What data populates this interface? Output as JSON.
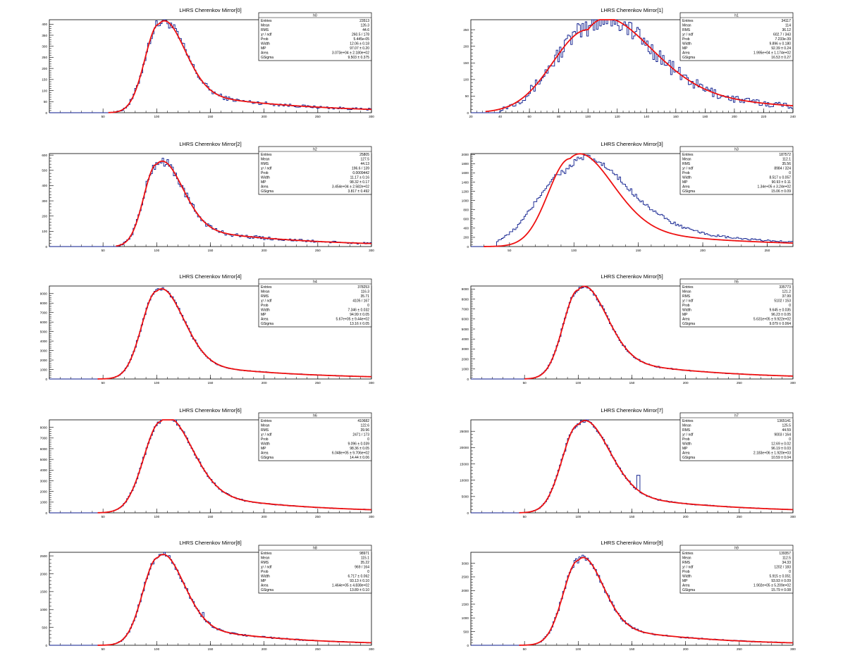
{
  "stat_labels": [
    "Entries",
    "Mean",
    "RMS",
    "χ² / ndf",
    "Prob",
    "Width",
    "MP",
    "Area",
    "GSigma"
  ],
  "colors": {
    "histogram": "#0a1a8c",
    "fit": "#ee1111",
    "frame": "#000000"
  },
  "chart_data": [
    {
      "type": "histogram",
      "title": "LHRS Cherenkov Mirror[0]",
      "stats_name": "h0",
      "stats": [
        "23513",
        "126.3",
        "44.6",
        "260.5 / 178",
        "5.445e-05",
        "12.06 ± 0.18",
        "97.07 ± 0.20",
        "3.073e+04 ± 2.180e+02",
        "9.503 ± 0.375"
      ],
      "xlim": [
        0,
        300
      ],
      "ylim": [
        0,
        420
      ],
      "xticks": [
        50,
        100,
        150,
        200,
        250,
        300
      ],
      "yticks": [
        0,
        50,
        100,
        150,
        200,
        250,
        300,
        350,
        400
      ],
      "fit": {
        "peak_x": 102,
        "peak_y": 400,
        "sigma_left": 13,
        "sigma_right": 22,
        "tail_ratio": 0.05,
        "tail_decay": 95,
        "start_x": 55
      },
      "data_jitter": 0.06,
      "data_start_x": 58
    },
    {
      "type": "histogram",
      "title": "LHRS Cherenkov Mirror[1]",
      "stats_name": "h1",
      "stats": [
        "34117",
        "114",
        "36.12",
        "602.7 / 343",
        "7.233e-39",
        "9.896 ± 0.180",
        "92.39 ± 0.24",
        "1.995e+04 ± 1.174e+02",
        "16.53 ± 0.27"
      ],
      "xlim": [
        20,
        240
      ],
      "ylim": [
        0,
        280
      ],
      "xticks": [
        20,
        40,
        60,
        80,
        100,
        120,
        140,
        160,
        180,
        200,
        220,
        240
      ],
      "yticks": [
        0,
        50,
        100,
        150,
        200,
        250
      ],
      "fit": {
        "peak_x": 100,
        "peak_y": 250,
        "sigma_left": 24,
        "sigma_right": 38,
        "tail_ratio": 0.08,
        "tail_decay": 80,
        "start_x": 30
      },
      "data_jitter": 0.12,
      "data_start_x": 40
    },
    {
      "type": "histogram",
      "title": "LHRS Cherenkov Mirror[2]",
      "stats_name": "h2",
      "stats": [
        "25805",
        "127.5",
        "44.13",
        "196.6 / 139",
        "0.0009442",
        "11.17 ± 0.16",
        "98.32 ± 0.17",
        "3.454e+04 ± 2.582e+02",
        "3.817 ± 0.492"
      ],
      "xlim": [
        0,
        300
      ],
      "ylim": [
        0,
        610
      ],
      "xticks": [
        50,
        100,
        150,
        200,
        250,
        300
      ],
      "yticks": [
        0,
        100,
        200,
        300,
        400,
        500,
        600
      ],
      "fit": {
        "peak_x": 100,
        "peak_y": 540,
        "sigma_left": 12,
        "sigma_right": 22,
        "tail_ratio": 0.05,
        "tail_decay": 95,
        "start_x": 62
      },
      "data_jitter": 0.06,
      "data_start_x": 65
    },
    {
      "type": "histogram",
      "title": "LHRS Cherenkov Mirror[3]",
      "stats_name": "h3",
      "stats": [
        "187572",
        "112.1",
        "35.56",
        "8984 / 324",
        "0",
        "8.517 ± 0.057",
        "90.93 ± 0.11",
        "1.34e+05 ± 3.24e+02",
        "15.06 ± 0.09"
      ],
      "xlim": [
        20,
        270
      ],
      "ylim": [
        0,
        2020
      ],
      "xticks": [
        50,
        100,
        150,
        200,
        250
      ],
      "yticks": [
        0,
        200,
        400,
        600,
        800,
        1000,
        1200,
        1400,
        1600,
        1800,
        2000
      ],
      "fit": {
        "peak_x": 97,
        "peak_y": 1910,
        "sigma_left": 17,
        "sigma_right": 30,
        "tail_ratio": 0.05,
        "tail_decay": 85,
        "start_x": 30
      },
      "data_override": {
        "peak_x": 95,
        "peak_y": 1650,
        "sigma_left": 24,
        "sigma_right": 40,
        "tail_ratio": 0.09,
        "tail_decay": 80
      },
      "data_jitter": 0.04,
      "data_start_x": 40
    },
    {
      "type": "histogram",
      "title": "LHRS Cherenkov Mirror[4]",
      "stats_name": "h4",
      "stats": [
        "378253",
        "116.3",
        "35.71",
        "4105 / 167",
        "0",
        "7.346 ± 0.032",
        "94.99 ± 0.05",
        "5.67e+05 ± 9.44e+02",
        "13.16 ± 0.05"
      ],
      "xlim": [
        0,
        300
      ],
      "ylim": [
        0,
        9800
      ],
      "xticks": [
        50,
        100,
        150,
        200,
        250,
        300
      ],
      "yticks": [
        0,
        1000,
        2000,
        3000,
        4000,
        5000,
        6000,
        7000,
        8000,
        9000
      ],
      "fit": {
        "peak_x": 100,
        "peak_y": 9250,
        "sigma_left": 14,
        "sigma_right": 23,
        "tail_ratio": 0.04,
        "tail_decay": 90,
        "start_x": 45
      },
      "data_jitter": 0.02,
      "data_start_x": 50
    },
    {
      "type": "histogram",
      "title": "LHRS Cherenkov Mirror[5]",
      "stats_name": "h5",
      "stats": [
        "335773",
        "121.2",
        "37.99",
        "5102 / 153",
        "0",
        "9.645 ± 0.035",
        "96.23 ± 0.05",
        "5.631e+05 ± 9.922e+02",
        "9.079 ± 0.064"
      ],
      "xlim": [
        0,
        300
      ],
      "ylim": [
        0,
        9300
      ],
      "xticks": [
        50,
        100,
        150,
        200,
        250,
        300
      ],
      "yticks": [
        0,
        1000,
        2000,
        3000,
        4000,
        5000,
        6000,
        7000,
        8000,
        9000
      ],
      "fit": {
        "peak_x": 100,
        "peak_y": 8900,
        "sigma_left": 14,
        "sigma_right": 24,
        "tail_ratio": 0.05,
        "tail_decay": 90,
        "start_x": 50
      },
      "data_jitter": 0.02,
      "data_start_x": 55
    },
    {
      "type": "histogram",
      "title": "LHRS Cherenkov Mirror[6]",
      "stats_name": "h6",
      "stats": [
        "410682",
        "122.6",
        "39.96",
        "2471 / 173",
        "0",
        "9.096 ± 0.039",
        "98.36 ± 0.05",
        "6.048e+05 ± 9.706e+02",
        "14.44 ± 0.06"
      ],
      "xlim": [
        0,
        300
      ],
      "ylim": [
        0,
        8700
      ],
      "xticks": [
        50,
        100,
        150,
        200,
        250,
        300
      ],
      "yticks": [
        0,
        1000,
        2000,
        3000,
        4000,
        5000,
        6000,
        7000,
        8000
      ],
      "fit": {
        "peak_x": 104,
        "peak_y": 8550,
        "sigma_left": 16,
        "sigma_right": 26,
        "tail_ratio": 0.05,
        "tail_decay": 90,
        "start_x": 45
      },
      "data_jitter": 0.02,
      "data_start_x": 50
    },
    {
      "type": "histogram",
      "title": "LHRS Cherenkov Mirror[7]",
      "stats_name": "h7",
      "stats": [
        "1365141",
        "125.5",
        "44.59",
        "9003 / 164",
        "0",
        "12.69 ± 0.02",
        "96.19 ± 0.03",
        "2.183e+06 ± 1.920e+03",
        "10.59 ± 0.04"
      ],
      "xlim": [
        0,
        300
      ],
      "ylim": [
        0,
        28500
      ],
      "xticks": [
        50,
        100,
        150,
        200,
        250,
        300
      ],
      "yticks": [
        0,
        5000,
        10000,
        15000,
        20000,
        25000
      ],
      "fit": {
        "peak_x": 100,
        "peak_y": 27000,
        "sigma_left": 15,
        "sigma_right": 26,
        "tail_ratio": 0.05,
        "tail_decay": 95,
        "start_x": 45
      },
      "data_jitter": 0.02,
      "data_start_x": 50,
      "spike": {
        "x": 156,
        "y": 11500
      }
    },
    {
      "type": "histogram",
      "title": "LHRS Cherenkov Mirror[8]",
      "stats_name": "h8",
      "stats": [
        "98971",
        "115.1",
        "35.22",
        "969 / 164",
        "0",
        "6.717 ± 0.062",
        "93.13 ± 0.10",
        "1.464e+05 ± 4.838e+02",
        "13.89 ± 0.10"
      ],
      "xlim": [
        0,
        300
      ],
      "ylim": [
        0,
        2600
      ],
      "xticks": [
        50,
        100,
        150,
        200,
        250,
        300
      ],
      "yticks": [
        0,
        500,
        1000,
        1500,
        2000,
        2500
      ],
      "fit": {
        "peak_x": 101,
        "peak_y": 2450,
        "sigma_left": 14,
        "sigma_right": 22,
        "tail_ratio": 0.05,
        "tail_decay": 85,
        "start_x": 45
      },
      "data_jitter": 0.03,
      "data_start_x": 50,
      "spike": {
        "x": 143,
        "y": 920
      }
    },
    {
      "type": "histogram",
      "title": "LHRS Cherenkov Mirror[9]",
      "stats_name": "h9",
      "stats": [
        "139357",
        "112.5",
        "34.33",
        "1202 / 183",
        "0",
        "5.915 ± 0.051",
        "93.93 ± 0.09",
        "1.902e+05 ± 5.209e+02",
        "15.79 ± 0.08"
      ],
      "xlim": [
        0,
        300
      ],
      "ylim": [
        0,
        3400
      ],
      "xticks": [
        50,
        100,
        150,
        200,
        250,
        300
      ],
      "yticks": [
        0,
        500,
        1000,
        1500,
        2000,
        2500,
        3000
      ],
      "fit": {
        "peak_x": 100,
        "peak_y": 3100,
        "sigma_left": 14,
        "sigma_right": 21,
        "tail_ratio": 0.05,
        "tail_decay": 85,
        "start_x": 45
      },
      "data_jitter": 0.03,
      "data_start_x": 50
    }
  ]
}
